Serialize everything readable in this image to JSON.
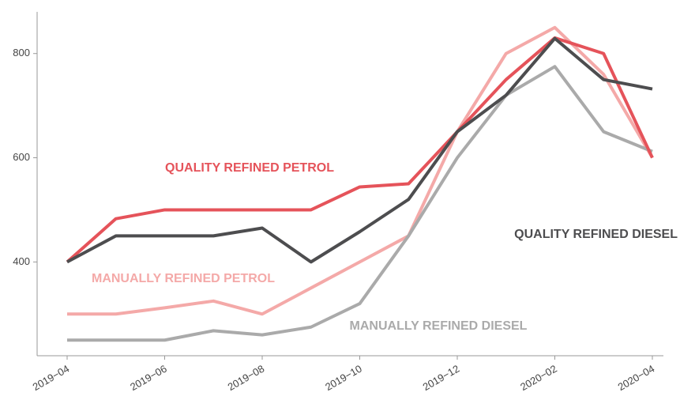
{
  "chart_data": {
    "type": "line",
    "categories": [
      "2019−04",
      null,
      "2019−06",
      null,
      "2019−08",
      null,
      "2019−10",
      null,
      "2019−12",
      null,
      "2020−02",
      null,
      "2020−04"
    ],
    "series": [
      {
        "name": "QUALITY REFINED PETROL",
        "color": "#e5535a",
        "values": [
          400,
          483,
          500,
          500,
          500,
          500,
          544,
          550,
          650,
          750,
          830,
          800,
          600
        ]
      },
      {
        "name": "QUALITY REFINED DIESEL",
        "color": "#4d4d4f",
        "values": [
          400,
          450,
          450,
          450,
          465,
          400,
          458,
          520,
          650,
          720,
          829,
          750,
          732
        ]
      },
      {
        "name": "MANUALLY REFINED PETROL",
        "color": "#f4a9a8",
        "values": [
          300,
          300,
          312,
          325,
          300,
          350,
          400,
          450,
          650,
          800,
          850,
          760,
          600
        ]
      },
      {
        "name": "MANUALLY REFINED DIESEL",
        "color": "#aaaaaa",
        "values": [
          250,
          250,
          250,
          268,
          260,
          275,
          320,
          450,
          600,
          720,
          775,
          650,
          612
        ]
      }
    ],
    "ylim": [
      220,
      880
    ],
    "yticks": [
      400,
      600,
      800
    ]
  }
}
